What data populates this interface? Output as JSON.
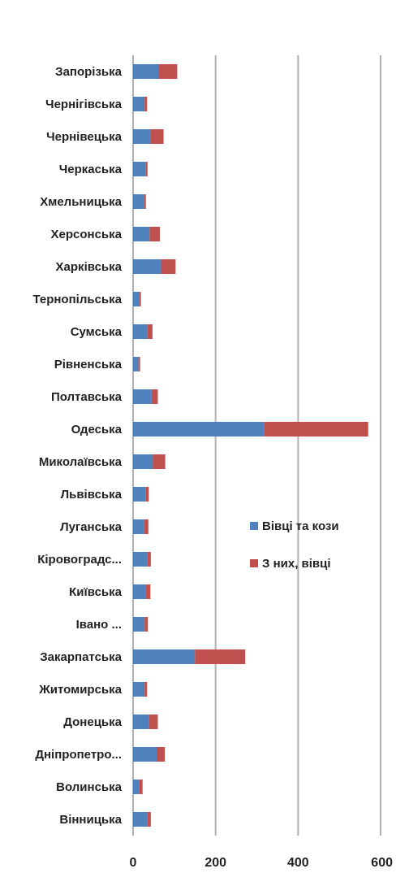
{
  "chart_data": {
    "type": "bar",
    "orientation": "horizontal",
    "stacked": true,
    "title": "",
    "xlabel": "",
    "ylabel": "",
    "xlim": [
      0,
      600
    ],
    "xticks": [
      "0",
      "200",
      "400",
      "600"
    ],
    "grid": true,
    "legend_position": "right",
    "categories": [
      "Запорізька",
      "Чернігівська",
      "Чернівецька",
      "Черкаська",
      "Хмельницька",
      "Херсонська",
      "Харківська",
      "Тернопільська",
      "Сумська",
      "Рівненська",
      "Полтавська",
      "Одеська",
      "Миколаївська",
      "Львівська",
      "Луганська",
      "Кіровоградс...",
      "Київська",
      "Івано ...",
      "Закарпатська",
      "Житомирська",
      "Донецька",
      "Дніпропетро...",
      "Волинська",
      "Вінницька"
    ],
    "series": [
      {
        "name": "Вівці та кози",
        "color": "#4f81bd",
        "values": [
          62,
          28,
          42,
          30,
          27,
          40,
          68,
          15,
          35,
          13,
          45,
          318,
          48,
          30,
          27,
          35,
          30,
          28,
          150,
          28,
          38,
          57,
          15,
          35
        ]
      },
      {
        "name": "З них, вівці",
        "color": "#c0504d",
        "values": [
          45,
          6,
          32,
          5,
          4,
          25,
          35,
          4,
          12,
          4,
          15,
          252,
          30,
          8,
          10,
          8,
          12,
          8,
          122,
          6,
          22,
          20,
          8,
          8
        ]
      }
    ]
  }
}
